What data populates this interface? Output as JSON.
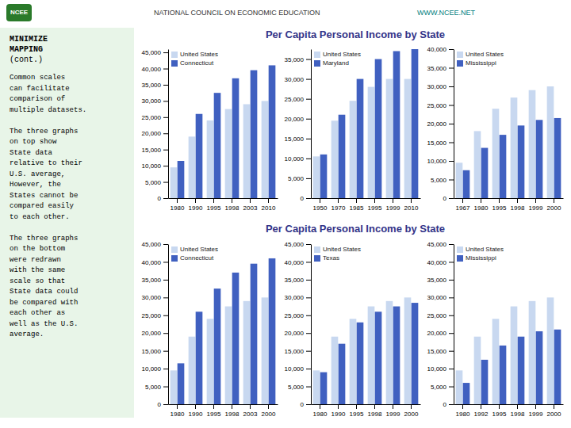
{
  "header_text": "NATIONAL COUNCIL ON ECONOMIC EDUCATION",
  "header_url": "WWW.NCEE.NET",
  "logo_text": "NCEE",
  "title_top": "Per Capita Personal Income by State",
  "title_bottom": "Per Capita Personal Income by State",
  "sidebar_title": [
    "MINIMIZE",
    "MAPPING"
  ],
  "sidebar_subtitle": "(cont.)",
  "sidebar_paragraphs": [
    [
      "Common scales",
      "can facilitate",
      "comparison of",
      "multiple datasets."
    ],
    [
      "The three graphs",
      "on top show",
      "State data",
      "relative to their",
      "U.S. average,",
      "However, the",
      "States cannot be",
      "compared easily",
      "to each other."
    ],
    [
      "The three graphs",
      "on the bottom",
      "were redrawn",
      "with the same",
      "scale so that",
      "State data could",
      "be compared with",
      "each other as",
      "well as the U.S.",
      "average."
    ]
  ],
  "chart_data": [
    {
      "type": "bar",
      "categories": [
        "1980",
        "1990",
        "1995",
        "1998",
        "2003",
        "2010"
      ],
      "series": [
        {
          "name": "United States",
          "color": "#c8d8f0",
          "values": [
            9500,
            19000,
            24000,
            27500,
            29000,
            30000
          ]
        },
        {
          "name": "Connecticut",
          "color": "#4060c0",
          "values": [
            11500,
            26000,
            32500,
            37000,
            39500,
            41000
          ]
        }
      ],
      "ylim": [
        0,
        46000
      ],
      "yticks": [
        0,
        {
          "value": 5000,
          "label": "5,000"
        },
        {
          "value": 10000,
          "label": "10,000"
        },
        {
          "value": 15000,
          "label": "15,000"
        },
        {
          "value": 20000,
          "label": "20,000"
        },
        {
          "value": 25000,
          "label": "25,000"
        },
        {
          "value": 30000,
          "label": "30,000"
        },
        {
          "value": 35000,
          "label": "35,000"
        },
        {
          "value": 40000,
          "label": "40,000"
        },
        {
          "value": 45000,
          "label": "45,000"
        }
      ],
      "legend": "upper left",
      "grid": false
    },
    {
      "type": "bar",
      "categories": [
        "1950",
        "1970",
        "1985",
        "1995",
        "1999",
        "2010"
      ],
      "series": [
        {
          "name": "United States",
          "color": "#c8d8f0",
          "values": [
            10500,
            19500,
            24500,
            28000,
            30000,
            30000
          ]
        },
        {
          "name": "Maryland",
          "color": "#4060c0",
          "values": [
            11000,
            21000,
            30000,
            35000,
            37000,
            37500
          ]
        }
      ],
      "ylim": [
        0,
        37500
      ],
      "yticks": [
        0,
        {
          "value": 5000,
          "label": "5,000"
        },
        {
          "value": 10000,
          "label": "10,000"
        },
        {
          "value": 15000,
          "label": "15,000"
        },
        {
          "value": 20000,
          "label": "20,000"
        },
        {
          "value": 25000,
          "label": "25,000"
        },
        {
          "value": 30000,
          "label": "30,000"
        },
        {
          "value": 35000,
          "label": "35,000"
        }
      ],
      "legend": "upper left",
      "grid": false
    },
    {
      "type": "bar",
      "categories": [
        "1967",
        "1980",
        "1995",
        "1998",
        "1999",
        "2000"
      ],
      "series": [
        {
          "name": "United States",
          "color": "#c8d8f0",
          "values": [
            9500,
            18000,
            24000,
            27000,
            29000,
            30000
          ]
        },
        {
          "name": "Mississippi",
          "color": "#4060c0",
          "values": [
            7500,
            13500,
            17000,
            19500,
            21000,
            21500
          ]
        }
      ],
      "ylim": [
        0,
        40000
      ],
      "yticks": [
        0,
        {
          "value": 5000,
          "label": "5,000"
        },
        {
          "value": 10000,
          "label": "10,000"
        },
        {
          "value": 15000,
          "label": "15,000"
        },
        {
          "value": 20000,
          "label": "20,000"
        },
        {
          "value": 25000,
          "label": "25,000"
        },
        {
          "value": 30000,
          "label": "30,000"
        },
        {
          "value": 35000,
          "label": "35,000"
        },
        {
          "value": 40000,
          "label": "40,000"
        }
      ],
      "legend": "upper left",
      "grid": false
    },
    {
      "type": "bar",
      "categories": [
        "1980",
        "1990",
        "1995",
        "1998",
        "2003",
        "2000"
      ],
      "series": [
        {
          "name": "United States",
          "color": "#c8d8f0",
          "values": [
            9500,
            19000,
            24000,
            27500,
            29000,
            30000
          ]
        },
        {
          "name": "Connecticut",
          "color": "#4060c0",
          "values": [
            11500,
            26000,
            32500,
            37000,
            39500,
            41000
          ]
        }
      ],
      "ylim": [
        0,
        45000
      ],
      "yticks": [
        0,
        {
          "value": 5000,
          "label": "5,000"
        },
        {
          "value": 10000,
          "label": "10,000"
        },
        {
          "value": 15000,
          "label": "15,000"
        },
        {
          "value": 20000,
          "label": "20,000"
        },
        {
          "value": 25000,
          "label": "25,000"
        },
        {
          "value": 30000,
          "label": "30,000"
        },
        {
          "value": 35000,
          "label": "35,000"
        },
        {
          "value": 40000,
          "label": "40,000"
        },
        {
          "value": 45000,
          "label": "45,000"
        }
      ],
      "legend": "upper left",
      "grid": false
    },
    {
      "type": "bar",
      "categories": [
        "1980",
        "1990",
        "1995",
        "1998",
        "1999",
        "2000"
      ],
      "series": [
        {
          "name": "United States",
          "color": "#c8d8f0",
          "values": [
            9500,
            19000,
            24000,
            27500,
            29000,
            30000
          ]
        },
        {
          "name": "Texas",
          "color": "#4060c0",
          "values": [
            9000,
            17000,
            23000,
            26000,
            27500,
            28500
          ]
        }
      ],
      "ylim": [
        0,
        45000
      ],
      "yticks": [
        0,
        {
          "value": 5000,
          "label": "5,000"
        },
        {
          "value": 10000,
          "label": "10,000"
        },
        {
          "value": 15000,
          "label": "15,000"
        },
        {
          "value": 20000,
          "label": "20,000"
        },
        {
          "value": 25000,
          "label": "25,000"
        },
        {
          "value": 30000,
          "label": "30,000"
        },
        {
          "value": 35000,
          "label": "35,000"
        },
        {
          "value": 40000,
          "label": "40,000"
        },
        {
          "value": 45000,
          "label": "45,000"
        }
      ],
      "legend": "upper left",
      "grid": false
    },
    {
      "type": "bar",
      "categories": [
        "1980",
        "1992",
        "1995",
        "1998",
        "1999",
        "2000"
      ],
      "series": [
        {
          "name": "United States",
          "color": "#c8d8f0",
          "values": [
            9500,
            19000,
            24000,
            27500,
            29000,
            30000
          ]
        },
        {
          "name": "Mississippi",
          "color": "#4060c0",
          "values": [
            6000,
            12500,
            16500,
            19000,
            20500,
            21000
          ]
        }
      ],
      "ylim": [
        0,
        45000
      ],
      "yticks": [
        0,
        {
          "value": 5000,
          "label": "5,000"
        },
        {
          "value": 10000,
          "label": "10,000"
        },
        {
          "value": 15000,
          "label": "15,000"
        },
        {
          "value": 20000,
          "label": "20,000"
        },
        {
          "value": 25000,
          "label": "25,000"
        },
        {
          "value": 30000,
          "label": "30,000"
        },
        {
          "value": 35000,
          "label": "35,000"
        },
        {
          "value": 40000,
          "label": "40,000"
        },
        {
          "value": 45000,
          "label": "45,000"
        }
      ],
      "legend": "upper left",
      "grid": false
    }
  ]
}
